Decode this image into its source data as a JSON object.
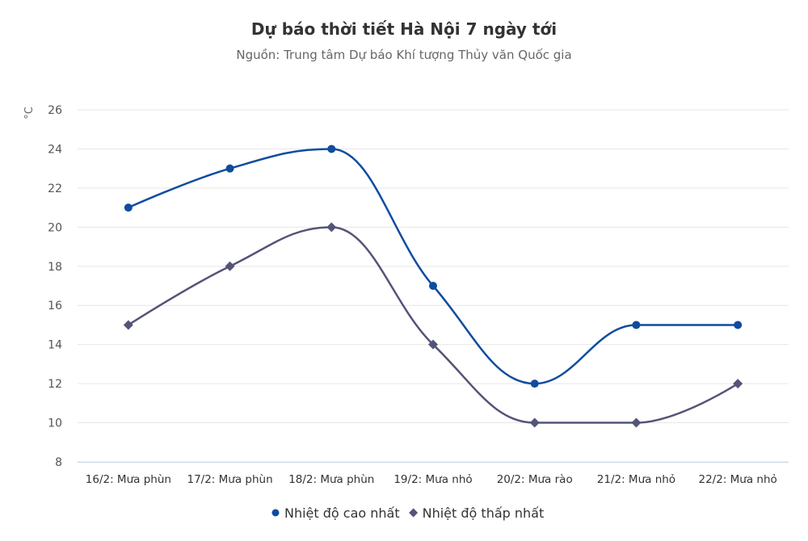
{
  "chart_data": {
    "type": "line",
    "title": "Dự báo thời tiết Hà Nội 7 ngày tới",
    "subtitle": "Nguồn: Trung tâm Dự báo Khí tượng Thủy văn Quốc gia",
    "ylabel": "°C",
    "xlabel": "",
    "ylim": [
      8,
      26
    ],
    "yticks": [
      8,
      10,
      12,
      14,
      16,
      18,
      20,
      22,
      24,
      26
    ],
    "grid": true,
    "legend": "bottom-center",
    "categories": [
      "16/2: Mưa phùn",
      "17/2: Mưa phùn",
      "18/2: Mưa phùn",
      "19/2: Mưa nhỏ",
      "20/2: Mưa rào",
      "21/2: Mưa nhỏ",
      "22/2: Mưa nhỏ"
    ],
    "series": [
      {
        "name": "Nhiệt độ cao nhất",
        "values": [
          21,
          23,
          24,
          17,
          12,
          15,
          15
        ],
        "color": "#0f4c9f",
        "marker": "circle"
      },
      {
        "name": "Nhiệt độ thấp nhất",
        "values": [
          15,
          18,
          20,
          14,
          10,
          10,
          12
        ],
        "color": "#545478",
        "marker": "diamond"
      }
    ]
  }
}
